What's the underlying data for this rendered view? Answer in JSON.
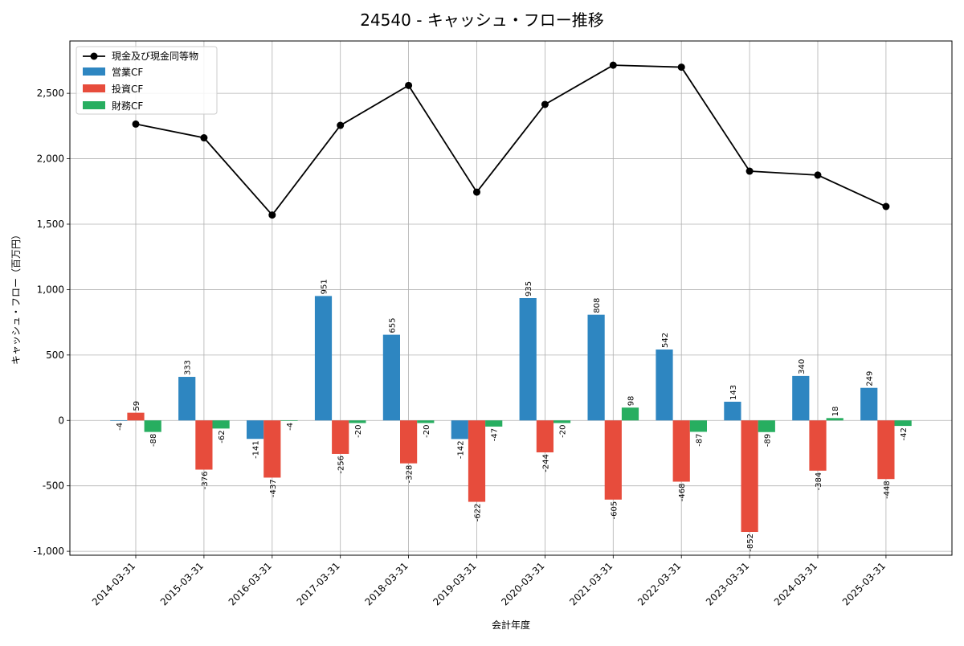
{
  "chart_data": {
    "type": "bar",
    "title": "24540 - キャッシュ・フロー推移",
    "xlabel": "会計年度",
    "ylabel": "キャッシュ・フロー（百万円）",
    "ylim": [
      -1030,
      2900
    ],
    "yticks": [
      -1000,
      -500,
      0,
      500,
      1000,
      1500,
      2000,
      2500
    ],
    "ytick_labels": [
      "-1,000",
      "-500",
      "0",
      "500",
      "1,000",
      "1,500",
      "2,000",
      "2,500"
    ],
    "grid": true,
    "legend_position": "top-left",
    "categories": [
      "2014-03-31",
      "2015-03-31",
      "2016-03-31",
      "2017-03-31",
      "2018-03-31",
      "2019-03-31",
      "2020-03-31",
      "2021-03-31",
      "2022-03-31",
      "2023-03-31",
      "2024-03-31",
      "2025-03-31"
    ],
    "bar_series": [
      {
        "name": "営業CF",
        "color": "#2e86c1",
        "values": [
          -4,
          333,
          -141,
          951,
          655,
          -142,
          935,
          808,
          542,
          143,
          340,
          249
        ]
      },
      {
        "name": "投資CF",
        "color": "#e74c3c",
        "values": [
          59,
          -376,
          -437,
          -256,
          -328,
          -622,
          -244,
          -605,
          -468,
          -852,
          -384,
          -448
        ]
      },
      {
        "name": "財務CF",
        "color": "#27ae60",
        "values": [
          -88,
          -62,
          -4,
          -20,
          -20,
          -47,
          -20,
          98,
          -87,
          -89,
          18,
          -42
        ]
      }
    ],
    "line_series": {
      "name": "現金及び現金同等物",
      "color": "#000000",
      "values": [
        2265,
        2160,
        1570,
        2255,
        2560,
        1745,
        2415,
        2715,
        2700,
        1905,
        1875,
        1635
      ]
    }
  }
}
